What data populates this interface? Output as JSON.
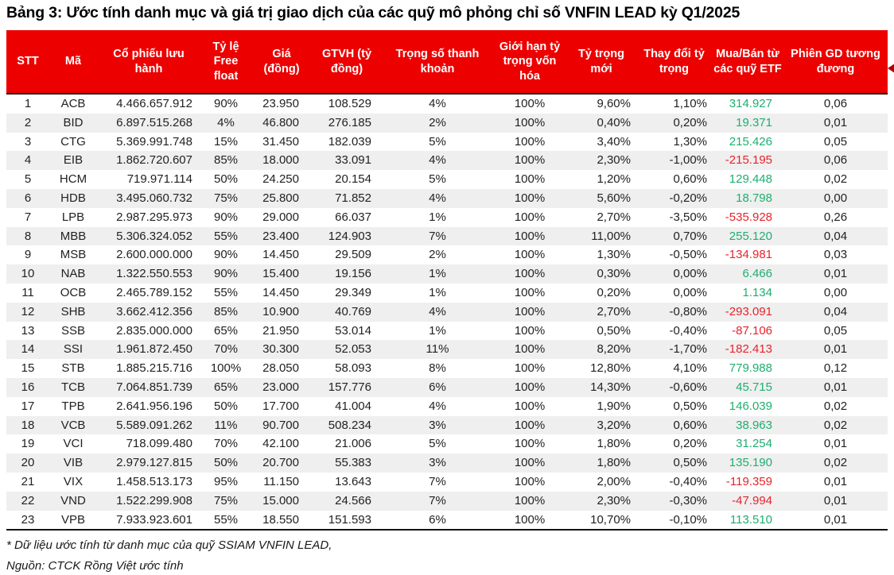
{
  "title": "Bảng 3: Ước tính danh mục và giá trị giao dịch của các quỹ mô phỏng chỉ số VNFIN LEAD kỳ Q1/2025",
  "colors": {
    "header_bg": "#ed0000",
    "header_fg": "#ffffff",
    "positive": "#1fae70",
    "negative": "#e8232a",
    "row_alt": "#efefef"
  },
  "table": {
    "columns": [
      {
        "key": "stt",
        "label": "STT"
      },
      {
        "key": "ma",
        "label": "Mã"
      },
      {
        "key": "co_phieu_luu_hanh",
        "label": "Cổ phiếu lưu hành"
      },
      {
        "key": "ty_le_free_float",
        "label": "Tỷ lệ Free float"
      },
      {
        "key": "gia",
        "label": "Giá (đồng)"
      },
      {
        "key": "gtvh",
        "label": "GTVH (tỷ đồng)"
      },
      {
        "key": "trong_so_thanh_khoan",
        "label": "Trọng số thanh khoản"
      },
      {
        "key": "gioi_han_ty_trong_von_hoa",
        "label": "Giới hạn tỷ trọng vốn hóa"
      },
      {
        "key": "ty_trong_moi",
        "label": "Tỷ trọng mới"
      },
      {
        "key": "thay_doi_ty_trong",
        "label": "Thay đổi tỷ trọng"
      },
      {
        "key": "mua_ban_etf",
        "label": "Mua/Bán từ các quỹ ETF"
      },
      {
        "key": "phien_gd",
        "label": "Phiên GD tương đương"
      }
    ],
    "rows": [
      {
        "cells": [
          "1",
          "ACB",
          "4.466.657.912",
          "90%",
          "23.950",
          "108.529",
          "4%",
          "100%",
          "9,60%",
          "1,10%",
          "314.927",
          "0,06"
        ]
      },
      {
        "cells": [
          "2",
          "BID",
          "6.897.515.268",
          "4%",
          "46.800",
          "276.185",
          "2%",
          "100%",
          "0,40%",
          "0,20%",
          "19.371",
          "0,01"
        ]
      },
      {
        "cells": [
          "3",
          "CTG",
          "5.369.991.748",
          "15%",
          "31.450",
          "182.039",
          "5%",
          "100%",
          "3,40%",
          "1,30%",
          "215.426",
          "0,05"
        ]
      },
      {
        "cells": [
          "4",
          "EIB",
          "1.862.720.607",
          "85%",
          "18.000",
          "33.091",
          "4%",
          "100%",
          "2,30%",
          "-1,00%",
          "-215.195",
          "0,06"
        ]
      },
      {
        "cells": [
          "5",
          "HCM",
          "719.971.114",
          "50%",
          "24.250",
          "20.154",
          "5%",
          "100%",
          "1,20%",
          "0,60%",
          "129.448",
          "0,02"
        ]
      },
      {
        "cells": [
          "6",
          "HDB",
          "3.495.060.732",
          "75%",
          "25.800",
          "71.852",
          "4%",
          "100%",
          "5,60%",
          "-0,20%",
          "18.798",
          "0,00"
        ]
      },
      {
        "cells": [
          "7",
          "LPB",
          "2.987.295.973",
          "90%",
          "29.000",
          "66.037",
          "1%",
          "100%",
          "2,70%",
          "-3,50%",
          "-535.928",
          "0,26"
        ]
      },
      {
        "cells": [
          "8",
          "MBB",
          "5.306.324.052",
          "55%",
          "23.400",
          "124.903",
          "7%",
          "100%",
          "11,00%",
          "0,70%",
          "255.120",
          "0,04"
        ]
      },
      {
        "cells": [
          "9",
          "MSB",
          "2.600.000.000",
          "90%",
          "14.450",
          "29.509",
          "2%",
          "100%",
          "1,30%",
          "-0,50%",
          "-134.981",
          "0,03"
        ]
      },
      {
        "cells": [
          "10",
          "NAB",
          "1.322.550.553",
          "90%",
          "15.400",
          "19.156",
          "1%",
          "100%",
          "0,30%",
          "0,00%",
          "6.466",
          "0,01"
        ]
      },
      {
        "cells": [
          "11",
          "OCB",
          "2.465.789.152",
          "55%",
          "14.450",
          "29.349",
          "1%",
          "100%",
          "0,20%",
          "0,00%",
          "1.134",
          "0,00"
        ]
      },
      {
        "cells": [
          "12",
          "SHB",
          "3.662.412.356",
          "85%",
          "10.900",
          "40.769",
          "4%",
          "100%",
          "2,70%",
          "-0,80%",
          "-293.091",
          "0,04"
        ]
      },
      {
        "cells": [
          "13",
          "SSB",
          "2.835.000.000",
          "65%",
          "21.950",
          "53.014",
          "1%",
          "100%",
          "0,50%",
          "-0,40%",
          "-87.106",
          "0,05"
        ]
      },
      {
        "cells": [
          "14",
          "SSI",
          "1.961.872.450",
          "70%",
          "30.300",
          "52.053",
          "11%",
          "100%",
          "8,20%",
          "-1,70%",
          "-182.413",
          "0,01"
        ]
      },
      {
        "cells": [
          "15",
          "STB",
          "1.885.215.716",
          "100%",
          "28.050",
          "58.093",
          "8%",
          "100%",
          "12,80%",
          "4,10%",
          "779.988",
          "0,12"
        ]
      },
      {
        "cells": [
          "16",
          "TCB",
          "7.064.851.739",
          "65%",
          "23.000",
          "157.776",
          "6%",
          "100%",
          "14,30%",
          "-0,60%",
          "45.715",
          "0,01"
        ]
      },
      {
        "cells": [
          "17",
          "TPB",
          "2.641.956.196",
          "50%",
          "17.700",
          "41.004",
          "4%",
          "100%",
          "1,90%",
          "0,50%",
          "146.039",
          "0,02"
        ]
      },
      {
        "cells": [
          "18",
          "VCB",
          "5.589.091.262",
          "11%",
          "90.700",
          "508.234",
          "3%",
          "100%",
          "3,20%",
          "0,60%",
          "38.963",
          "0,02"
        ]
      },
      {
        "cells": [
          "19",
          "VCI",
          "718.099.480",
          "70%",
          "42.100",
          "21.006",
          "5%",
          "100%",
          "1,80%",
          "0,20%",
          "31.254",
          "0,01"
        ]
      },
      {
        "cells": [
          "20",
          "VIB",
          "2.979.127.815",
          "50%",
          "20.700",
          "55.383",
          "3%",
          "100%",
          "1,80%",
          "0,50%",
          "135.190",
          "0,02"
        ]
      },
      {
        "cells": [
          "21",
          "VIX",
          "1.458.513.173",
          "95%",
          "11.150",
          "13.643",
          "7%",
          "100%",
          "2,00%",
          "-0,40%",
          "-119.359",
          "0,01"
        ]
      },
      {
        "cells": [
          "22",
          "VND",
          "1.522.299.908",
          "75%",
          "15.000",
          "24.566",
          "7%",
          "100%",
          "2,30%",
          "-0,30%",
          "-47.994",
          "0,01"
        ]
      },
      {
        "cells": [
          "23",
          "VPB",
          "7.933.923.601",
          "55%",
          "18.550",
          "151.593",
          "6%",
          "100%",
          "10,70%",
          "-0,10%",
          "113.510",
          "0,01"
        ]
      }
    ]
  },
  "footnotes": {
    "note1": "* Dữ liệu ước tính từ danh mục của  quỹ SSIAM VNFIN LEAD,",
    "note2": "Nguồn: CTCK Rồng Việt ước tính"
  }
}
